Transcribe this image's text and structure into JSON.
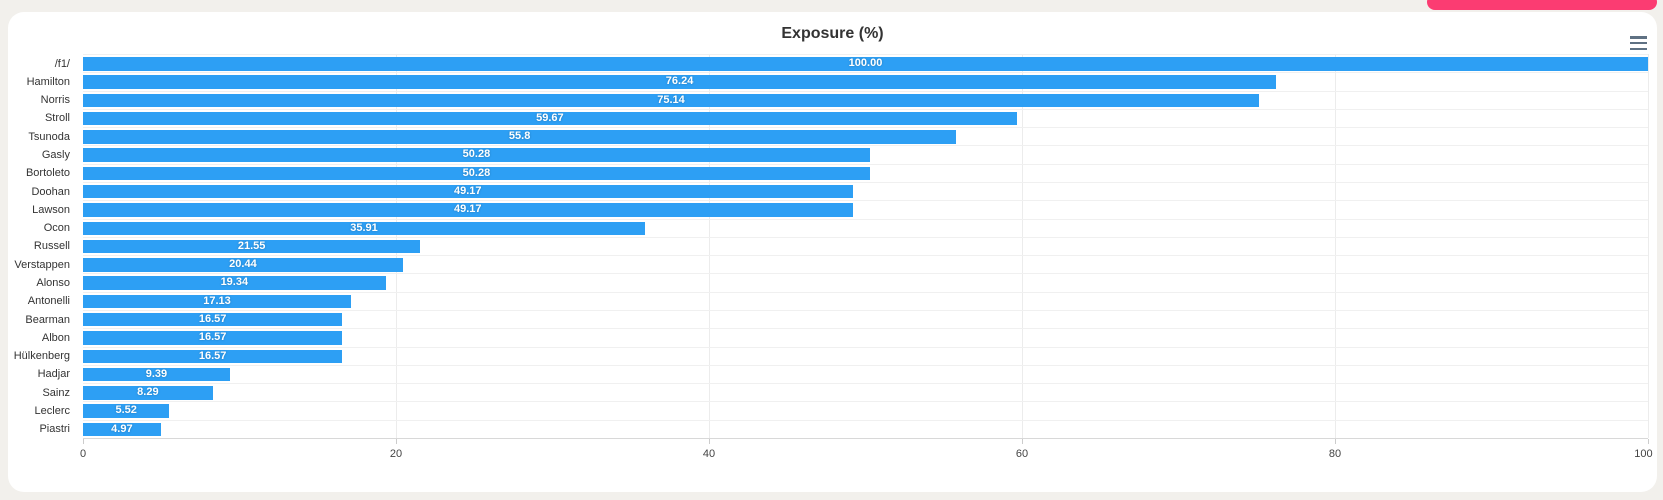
{
  "app": {
    "background_color": "#f2f0ec",
    "top_right_button_color": "#fb3c72"
  },
  "chart": {
    "title": "Exposure (%)",
    "menu_icon": "hamburger-menu-icon"
  },
  "chart_data": {
    "type": "bar",
    "orientation": "horizontal",
    "title": "Exposure (%)",
    "bar_color": "#2d9ff4",
    "categories": [
      "/f1/",
      "Hamilton",
      "Norris",
      "Stroll",
      "Tsunoda",
      "Gasly",
      "Bortoleto",
      "Doohan",
      "Lawson",
      "Ocon",
      "Russell",
      "Verstappen",
      "Alonso",
      "Antonelli",
      "Bearman",
      "Albon",
      "Hülkenberg",
      "Hadjar",
      "Sainz",
      "Leclerc",
      "Piastri"
    ],
    "values": [
      100.0,
      76.24,
      75.14,
      59.67,
      55.8,
      50.28,
      50.28,
      49.17,
      49.17,
      35.91,
      21.55,
      20.44,
      19.34,
      17.13,
      16.57,
      16.57,
      16.57,
      9.39,
      8.29,
      5.52,
      4.97
    ],
    "value_labels": [
      "100.00",
      "76.24",
      "75.14",
      "59.67",
      "55.8",
      "50.28",
      "50.28",
      "49.17",
      "49.17",
      "35.91",
      "21.55",
      "20.44",
      "19.34",
      "17.13",
      "16.57",
      "16.57",
      "16.57",
      "9.39",
      "8.29",
      "5.52",
      "4.97"
    ],
    "xlabel": "",
    "ylabel": "",
    "xlim": [
      0,
      100
    ],
    "xticks": [
      0,
      20,
      40,
      60,
      80,
      100
    ],
    "grid": true,
    "legend_position": "none"
  }
}
